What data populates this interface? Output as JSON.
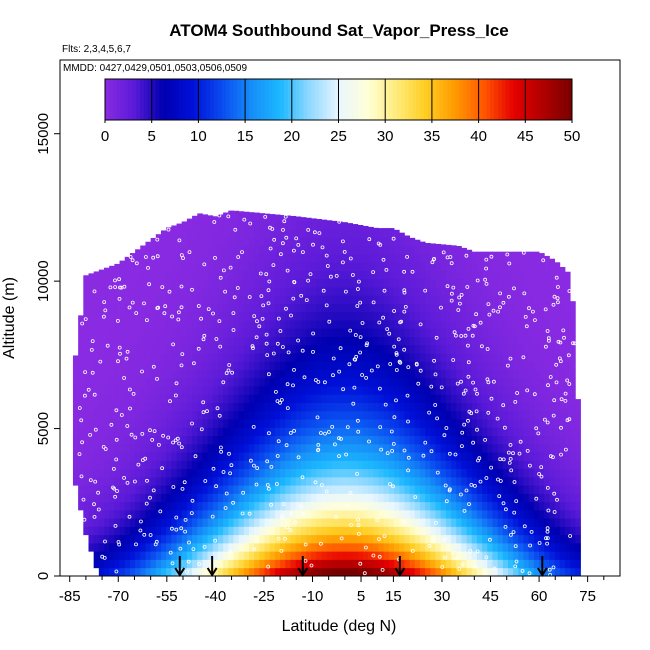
{
  "chart_data": {
    "type": "heatmap",
    "title": "ATOM4 Southbound Sat_Vapor_Press_Ice",
    "flights_label": "Flts: 2,3,4,5,6,7",
    "dates_label": "MMDD: 0427,0429,0501,0503,0506,0509",
    "xlabel": "Latitude (deg N)",
    "ylabel": "Altitude (m)",
    "xlim": [
      -88,
      85
    ],
    "ylim": [
      0,
      17500
    ],
    "x_ticks": [
      -85,
      -70,
      -55,
      -40,
      -25,
      -10,
      5,
      15,
      30,
      45,
      60,
      75
    ],
    "x_minor_ticks": [
      -80,
      -75,
      -65,
      -60,
      -50,
      -45,
      -35,
      -30,
      -20,
      -15,
      -5,
      0,
      10,
      20,
      25,
      35,
      40,
      50,
      55,
      65,
      70,
      80
    ],
    "y_ticks": [
      0,
      5000,
      10000,
      15000
    ],
    "colorbar": {
      "min": 0,
      "max": 50,
      "ticks": [
        0,
        5,
        10,
        15,
        20,
        25,
        30,
        35,
        40,
        45,
        50
      ],
      "colors": [
        "#8a2be2",
        "#5a1ad8",
        "#0000b0",
        "#0010d8",
        "#0a4bf0",
        "#168cf8",
        "#1cb8ff",
        "#8fd8ff",
        "#e8f6ff",
        "#ffffd8",
        "#ffeb7a",
        "#ffcc22",
        "#ff9a00",
        "#ff5500",
        "#e60000",
        "#b00000",
        "#7a0000"
      ]
    },
    "profile_top_altitude": [
      {
        "lat": -84,
        "alt": 6800
      },
      {
        "lat": -80,
        "alt": 10200
      },
      {
        "lat": -75,
        "alt": 10400
      },
      {
        "lat": -70,
        "alt": 10600
      },
      {
        "lat": -65,
        "alt": 11000
      },
      {
        "lat": -60,
        "alt": 11400
      },
      {
        "lat": -55,
        "alt": 11800
      },
      {
        "lat": -50,
        "alt": 12000
      },
      {
        "lat": -45,
        "alt": 12300
      },
      {
        "lat": -40,
        "alt": 12200
      },
      {
        "lat": -35,
        "alt": 12400
      },
      {
        "lat": -25,
        "alt": 12300
      },
      {
        "lat": -15,
        "alt": 12200
      },
      {
        "lat": 0,
        "alt": 12000
      },
      {
        "lat": 10,
        "alt": 11800
      },
      {
        "lat": 15,
        "alt": 11800
      },
      {
        "lat": 20,
        "alt": 11500
      },
      {
        "lat": 25,
        "alt": 11300
      },
      {
        "lat": 35,
        "alt": 11200
      },
      {
        "lat": 40,
        "alt": 11000
      },
      {
        "lat": 50,
        "alt": 11000
      },
      {
        "lat": 55,
        "alt": 11000
      },
      {
        "lat": 60,
        "alt": 11000
      },
      {
        "lat": 65,
        "alt": 10700
      },
      {
        "lat": 70,
        "alt": 10200
      },
      {
        "lat": 71,
        "alt": 8000
      },
      {
        "lat": 72,
        "alt": 6000
      }
    ],
    "profile_bottom_altitude": [
      {
        "lat": -84,
        "alt": 3500
      },
      {
        "lat": -82,
        "alt": 2500
      },
      {
        "lat": -80,
        "alt": 1500
      },
      {
        "lat": -78,
        "alt": 800
      },
      {
        "lat": -76,
        "alt": 0
      },
      {
        "lat": 70,
        "alt": 0
      }
    ],
    "profile_arrow_latitudes": [
      -51,
      -41,
      -13,
      17,
      61
    ]
  }
}
